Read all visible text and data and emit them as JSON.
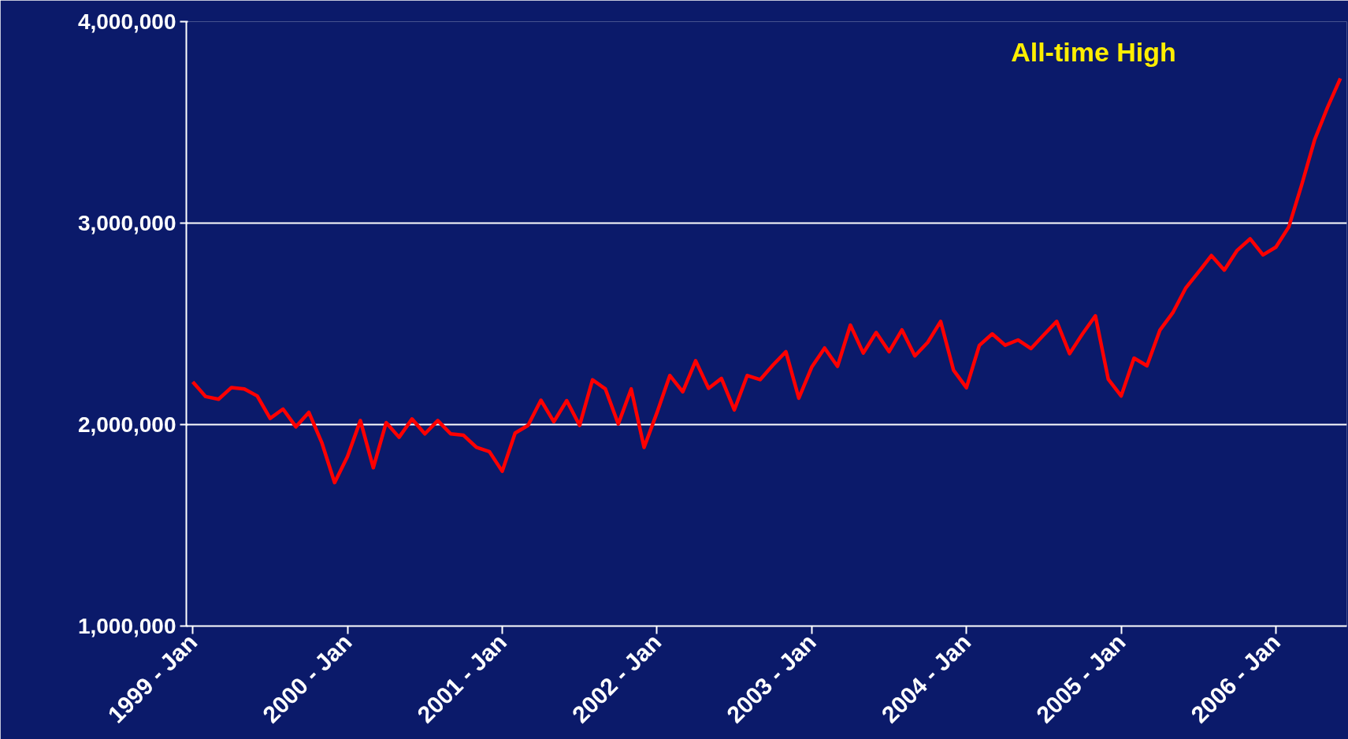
{
  "chart_data": {
    "type": "line",
    "annotations": [
      "All-time High"
    ],
    "categories": [
      "1999 - Jan",
      null,
      null,
      null,
      null,
      null,
      null,
      null,
      null,
      null,
      null,
      null,
      "2000 - Jan",
      null,
      null,
      null,
      null,
      null,
      null,
      null,
      null,
      null,
      null,
      null,
      "2001 - Jan",
      null,
      null,
      null,
      null,
      null,
      null,
      null,
      null,
      null,
      null,
      null,
      "2002 - Jan",
      null,
      null,
      null,
      null,
      null,
      null,
      null,
      null,
      null,
      null,
      null,
      "2003 - Jan",
      null,
      null,
      null,
      null,
      null,
      null,
      null,
      null,
      null,
      null,
      null,
      "2004 - Jan",
      null,
      null,
      null,
      null,
      null,
      null,
      null,
      null,
      null,
      null,
      null,
      "2005 - Jan",
      null,
      null,
      null,
      null,
      null,
      null,
      null,
      null,
      null,
      null,
      null,
      "2006 - Jan",
      null,
      null,
      null,
      null,
      null
    ],
    "series": [
      {
        "color": "#ff0000",
        "values": [
          2212000,
          2139000,
          2126000,
          2184000,
          2177000,
          2142000,
          2031000,
          2077000,
          1989000,
          2061000,
          1912000,
          1712000,
          1842000,
          2020000,
          1786000,
          2010000,
          1937000,
          2028000,
          1954000,
          2020000,
          1954000,
          1947000,
          1887000,
          1866000,
          1768000,
          1958000,
          1996000,
          2121000,
          2014000,
          2119000,
          1996000,
          2222000,
          2177000,
          2003000,
          2177000,
          1887000,
          2059000,
          2244000,
          2163000,
          2317000,
          2180000,
          2229000,
          2073000,
          2244000,
          2223000,
          2296000,
          2362000,
          2131000,
          2285000,
          2380000,
          2289000,
          2494000,
          2355000,
          2457000,
          2362000,
          2470000,
          2341000,
          2408000,
          2512000,
          2270000,
          2183000,
          2393000,
          2450000,
          2394000,
          2420000,
          2377000,
          2445000,
          2512000,
          2352000,
          2450000,
          2540000,
          2225000,
          2142000,
          2330000,
          2292000,
          2468000,
          2555000,
          2677000,
          2757000,
          2839000,
          2767000,
          2865000,
          2922000,
          2842000,
          2881000,
          2981000,
          3190000,
          3413000,
          3574000,
          3718000
        ]
      }
    ],
    "ylim": [
      1000000,
      4000000
    ],
    "yticks": [
      {
        "value": 1000000,
        "label": "1,000,000"
      },
      {
        "value": 2000000,
        "label": "2,000,000"
      },
      {
        "value": 3000000,
        "label": "3,000,000"
      },
      {
        "value": 4000000,
        "label": "4,000,000"
      }
    ],
    "grid": "y",
    "marker": "none",
    "line_style": "solid"
  }
}
